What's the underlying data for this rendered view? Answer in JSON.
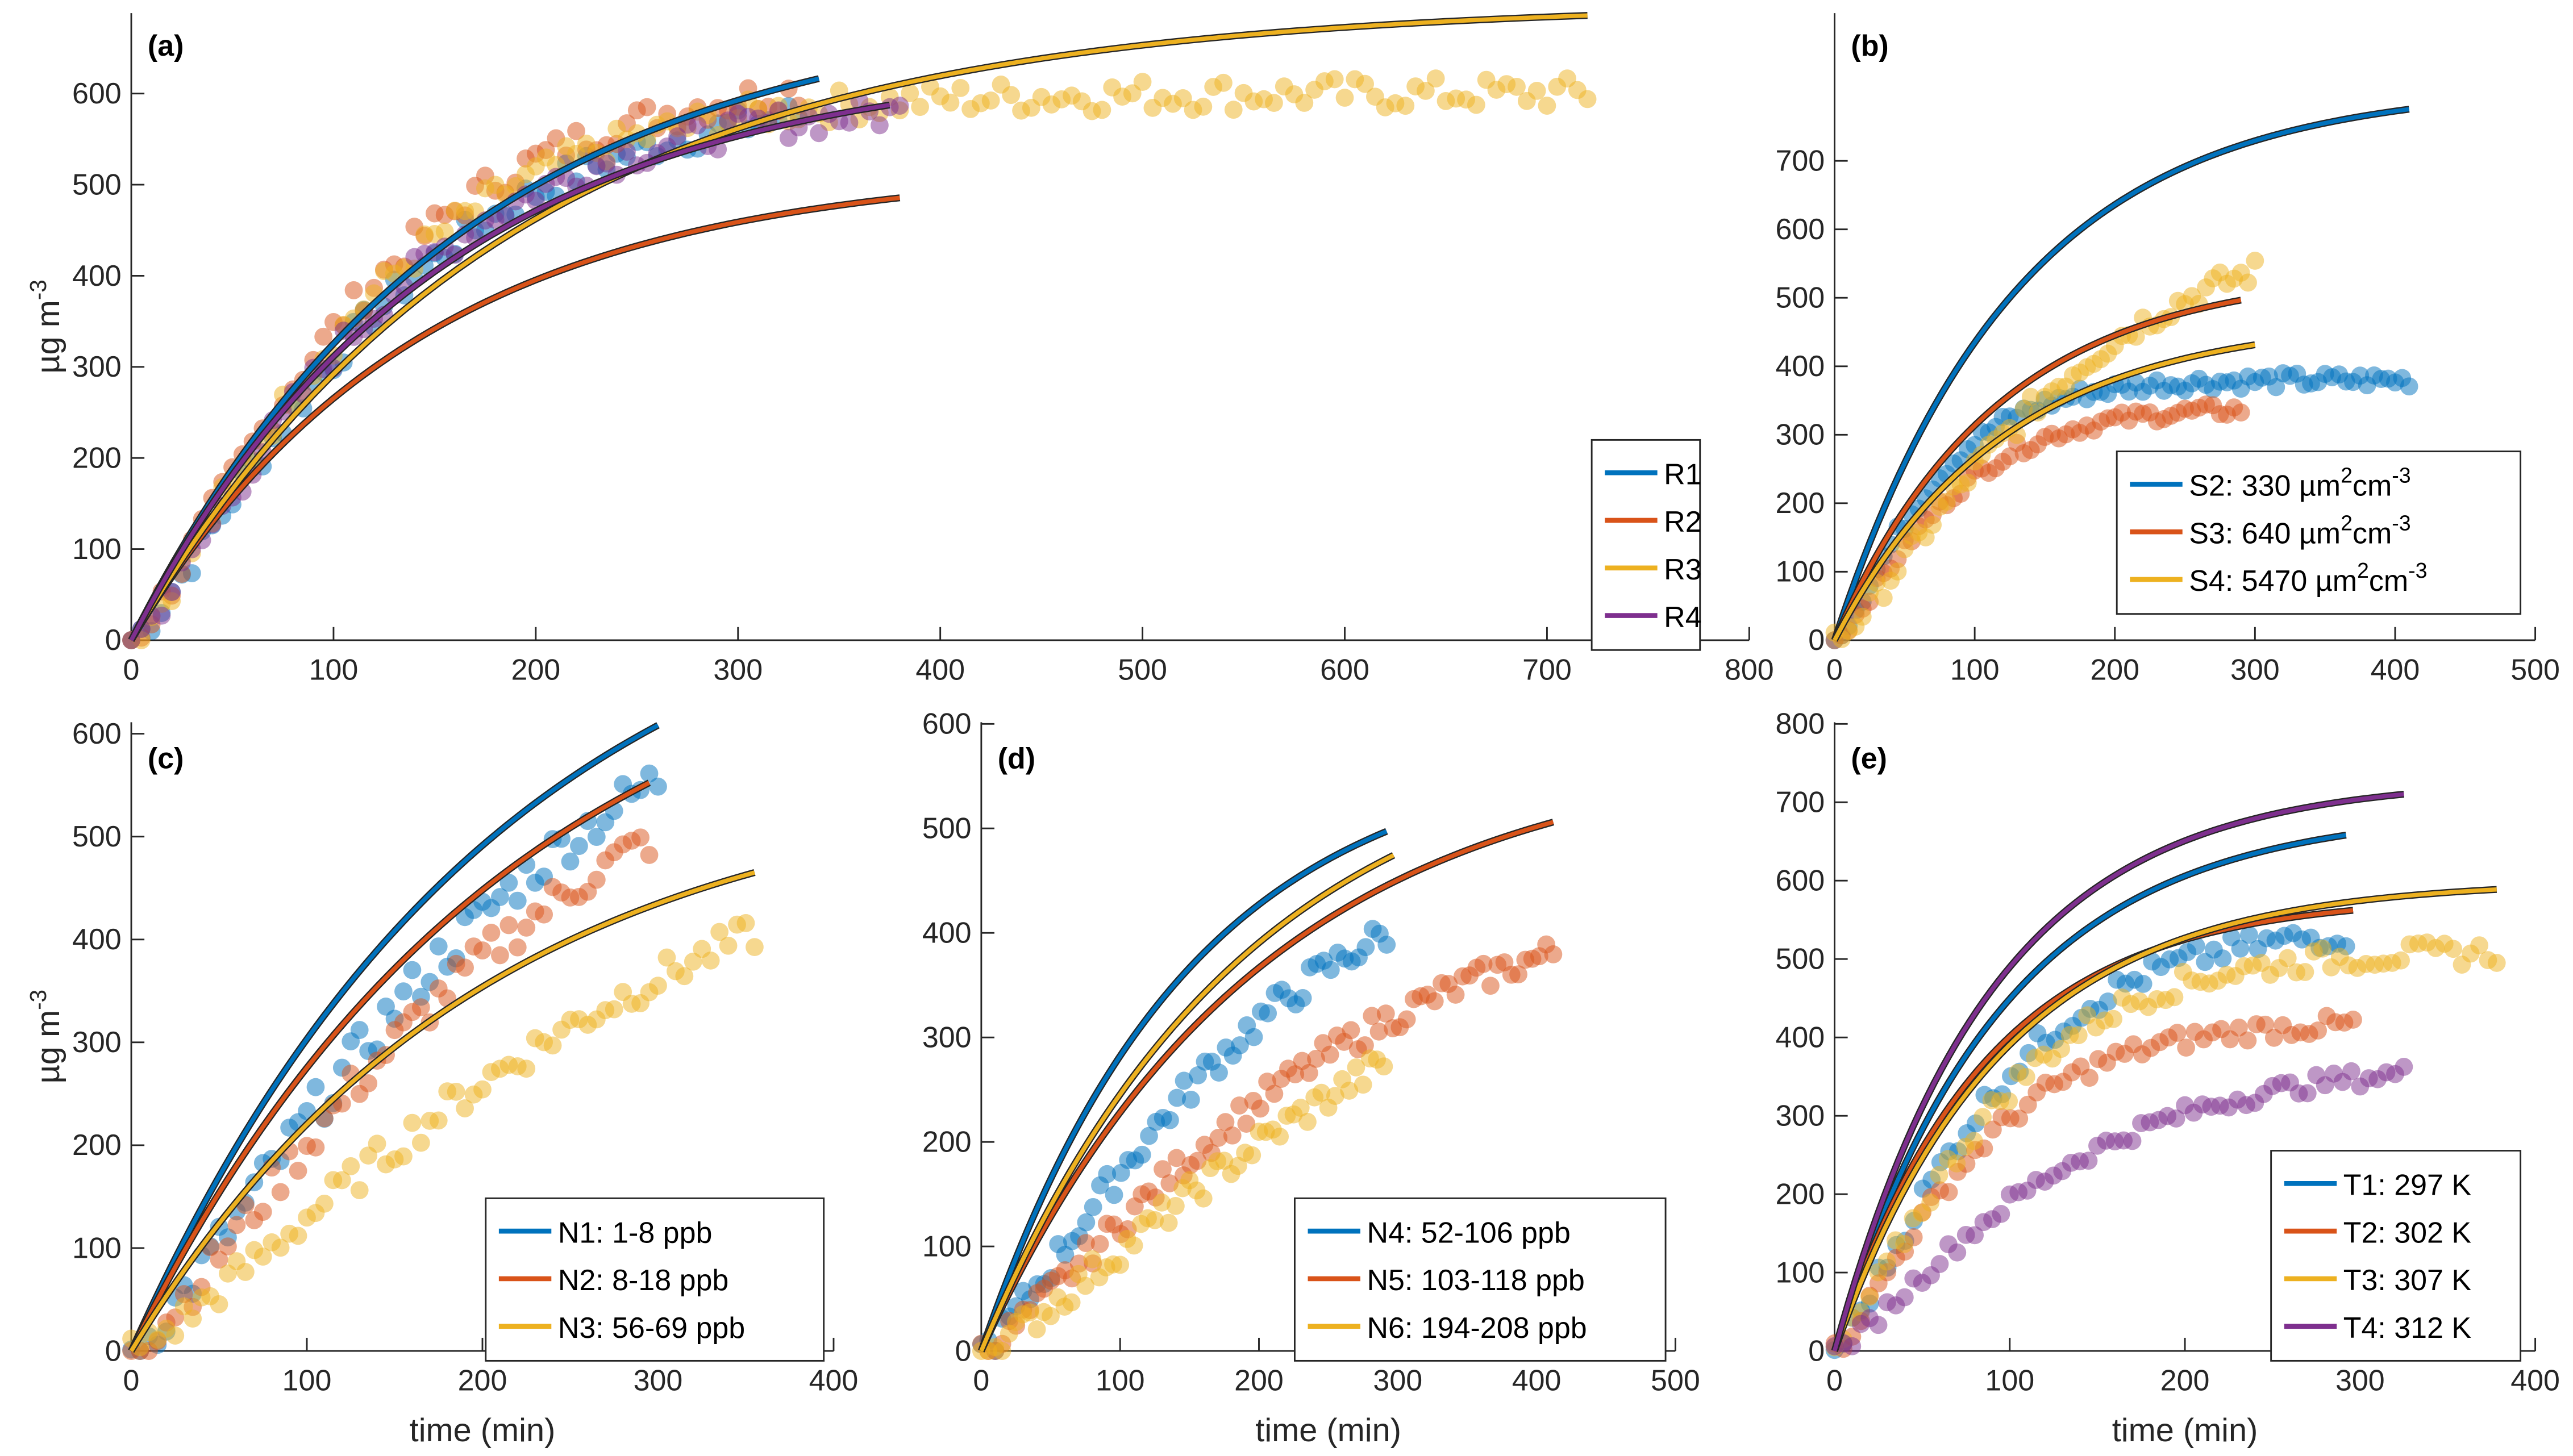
{
  "chart_data": [
    {
      "id": "a",
      "type": "scatter",
      "panel_label": "(a)",
      "title": "",
      "xlabel": "",
      "ylabel": "µg m-3",
      "ylabel_base": "µg m",
      "ylabel_sup": "-3",
      "xlim": [
        0,
        800
      ],
      "ylim": [
        0,
        690
      ],
      "xticks": [
        0,
        100,
        200,
        300,
        400,
        500,
        600,
        700,
        800
      ],
      "yticks": [
        0,
        100,
        200,
        300,
        400,
        500,
        600
      ],
      "grid": false,
      "legend_position": "bottom-right",
      "series": [
        {
          "name": "R1",
          "label": "R1",
          "color": "#0072BD",
          "fit_asymptote": 700,
          "fit_tau": 160,
          "fit_end": 340,
          "obs_end": 330,
          "obs_plateau": 600,
          "obs_tau": 130
        },
        {
          "name": "R2",
          "label": "R2",
          "color": "#D95319",
          "fit_asymptote": 520,
          "fit_tau": 140,
          "fit_end": 380,
          "obs_end": 330,
          "obs_plateau": 620,
          "obs_tau": 120
        },
        {
          "name": "R3",
          "label": "R3",
          "color": "#EDB120",
          "fit_asymptote": 700,
          "fit_tau": 185,
          "fit_end": 720,
          "obs_end": 720,
          "obs_plateau": 600,
          "obs_tau": 120
        },
        {
          "name": "R4",
          "label": "R4",
          "color": "#7E2F8E",
          "fit_asymptote": 640,
          "fit_tau": 150,
          "fit_end": 375,
          "obs_end": 380,
          "obs_plateau": 590,
          "obs_tau": 125
        }
      ]
    },
    {
      "id": "b",
      "type": "scatter",
      "panel_label": "(b)",
      "title": "",
      "xlabel": "",
      "ylabel": "",
      "xlim": [
        0,
        500
      ],
      "ylim": [
        0,
        790
      ],
      "xticks": [
        0,
        100,
        200,
        300,
        400,
        500
      ],
      "yticks": [
        0,
        100,
        200,
        300,
        400,
        500,
        600,
        700
      ],
      "grid": false,
      "legend_position": "bottom-right",
      "series": [
        {
          "name": "S2",
          "label": "S2: 330 µm",
          "sup1": "2",
          "mid": "cm",
          "sup2": "-3",
          "color": "#0072BD",
          "fit_asymptote": 810,
          "fit_tau": 130,
          "fit_end": 410,
          "obs_end": 410,
          "obs_plateau": 380,
          "obs_tau": 75
        },
        {
          "name": "S3",
          "label": "S3: 640 µm",
          "sup1": "2",
          "mid": "cm",
          "sup2": "-3",
          "color": "#D95319",
          "fit_asymptote": 540,
          "fit_tau": 115,
          "fit_end": 290,
          "obs_end": 290,
          "obs_plateau": 340,
          "obs_tau": 85
        },
        {
          "name": "S4",
          "label": "S4: 5470 µm",
          "sup1": "2",
          "mid": "cm",
          "sup2": "-3",
          "color": "#EDB120",
          "fit_asymptote": 470,
          "fit_tau": 120,
          "fit_end": 300,
          "obs_end": 300,
          "obs_plateau": 620,
          "obs_tau": 170
        }
      ]
    },
    {
      "id": "c",
      "type": "scatter",
      "panel_label": "(c)",
      "title": "",
      "xlabel": "time (min)",
      "ylabel": "µg m-3",
      "ylabel_base": "µg m",
      "ylabel_sup": "-3",
      "xlim": [
        0,
        400
      ],
      "ylim": [
        0,
        610
      ],
      "xticks": [
        0,
        100,
        200,
        300,
        400
      ],
      "yticks": [
        0,
        100,
        200,
        300,
        400,
        500,
        600
      ],
      "grid": false,
      "legend_position": "bottom-right",
      "series": [
        {
          "name": "N1",
          "label": "N1: 1-8 ppb",
          "color": "#0072BD",
          "fit_asymptote": 800,
          "fit_tau": 210,
          "fit_end": 300,
          "obs_end": 300,
          "obs_plateau": 720,
          "obs_tau": 220
        },
        {
          "name": "N2",
          "label": "N2: 8-18 ppb",
          "color": "#D95319",
          "fit_asymptote": 740,
          "fit_tau": 215,
          "fit_end": 295,
          "obs_end": 295,
          "obs_plateau": 650,
          "obs_tau": 220
        },
        {
          "name": "N3",
          "label": "N3: 56-69 ppb",
          "color": "#EDB120",
          "fit_asymptote": 560,
          "fit_tau": 200,
          "fit_end": 355,
          "obs_end": 355,
          "obs_plateau": 560,
          "obs_tau": 290
        }
      ]
    },
    {
      "id": "d",
      "type": "scatter",
      "panel_label": "(d)",
      "title": "",
      "xlabel": "time (min)",
      "ylabel": "",
      "xlim": [
        0,
        500
      ],
      "ylim": [
        0,
        600
      ],
      "xticks": [
        0,
        100,
        200,
        300,
        400,
        500
      ],
      "yticks": [
        0,
        100,
        200,
        300,
        400,
        500,
        600
      ],
      "grid": false,
      "legend_position": "bottom-right",
      "series": [
        {
          "name": "N4",
          "label": "N4: 52-106 ppb",
          "color": "#0072BD",
          "fit_asymptote": 580,
          "fit_tau": 150,
          "fit_end": 292,
          "obs_end": 292,
          "obs_plateau": 500,
          "obs_tau": 200
        },
        {
          "name": "N5",
          "label": "N5: 103-118 ppb",
          "color": "#D95319",
          "fit_asymptote": 580,
          "fit_tau": 200,
          "fit_end": 412,
          "obs_end": 412,
          "obs_plateau": 450,
          "obs_tau": 250
        },
        {
          "name": "N6",
          "label": "N6: 194-208 ppb",
          "color": "#EDB120",
          "fit_asymptote": 600,
          "fit_tau": 190,
          "fit_end": 297,
          "obs_end": 290,
          "obs_plateau": 480,
          "obs_tau": 330
        }
      ]
    },
    {
      "id": "e",
      "type": "scatter",
      "panel_label": "(e)",
      "title": "",
      "xlabel": "time (min)",
      "ylabel": "",
      "xlim": [
        0,
        400
      ],
      "ylim": [
        0,
        800
      ],
      "xticks": [
        0,
        100,
        200,
        300,
        400
      ],
      "yticks": [
        0,
        100,
        200,
        300,
        400,
        500,
        600,
        700,
        800
      ],
      "grid": false,
      "legend_position": "bottom-right",
      "series": [
        {
          "name": "T1",
          "label": "T1: 297 K",
          "color": "#0072BD",
          "fit_asymptote": 690,
          "fit_tau": 95,
          "fit_end": 292,
          "obs_end": 292,
          "obs_plateau": 540,
          "obs_tau": 95
        },
        {
          "name": "T2",
          "label": "T2: 302 K",
          "color": "#D95319",
          "fit_asymptote": 580,
          "fit_tau": 85,
          "fit_end": 296,
          "obs_end": 296,
          "obs_plateau": 420,
          "obs_tau": 85
        },
        {
          "name": "T3",
          "label": "T3: 307 K",
          "color": "#EDB120",
          "fit_asymptote": 600,
          "fit_tau": 95,
          "fit_end": 378,
          "obs_end": 378,
          "obs_plateau": 510,
          "obs_tau": 95
        },
        {
          "name": "T4",
          "label": "T4: 312 K",
          "color": "#7E2F8E",
          "fit_asymptote": 730,
          "fit_tau": 90,
          "fit_end": 325,
          "obs_end": 325,
          "obs_plateau": 370,
          "obs_tau": 130
        }
      ]
    }
  ]
}
